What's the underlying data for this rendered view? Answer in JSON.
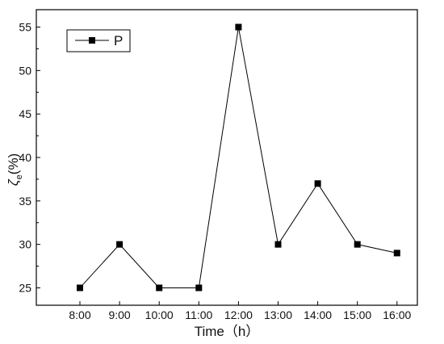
{
  "chart_data": {
    "type": "line",
    "categories": [
      "8:00",
      "9:00",
      "10:00",
      "11:00",
      "12:00",
      "13:00",
      "14:00",
      "15:00",
      "16:00"
    ],
    "series": [
      {
        "name": "P",
        "values": [
          25,
          30,
          25,
          25,
          55,
          30,
          37,
          30,
          29
        ],
        "color": "#000000",
        "marker": "square"
      }
    ],
    "xlabel": "Time（h）",
    "ylabel_main": "ζ",
    "ylabel_sub": "e",
    "ylabel_unit": "(%)",
    "ylim": [
      23,
      57
    ],
    "yticks": [
      25,
      30,
      35,
      40,
      45,
      50,
      55
    ],
    "grid": false,
    "legend_position": "top-left"
  }
}
